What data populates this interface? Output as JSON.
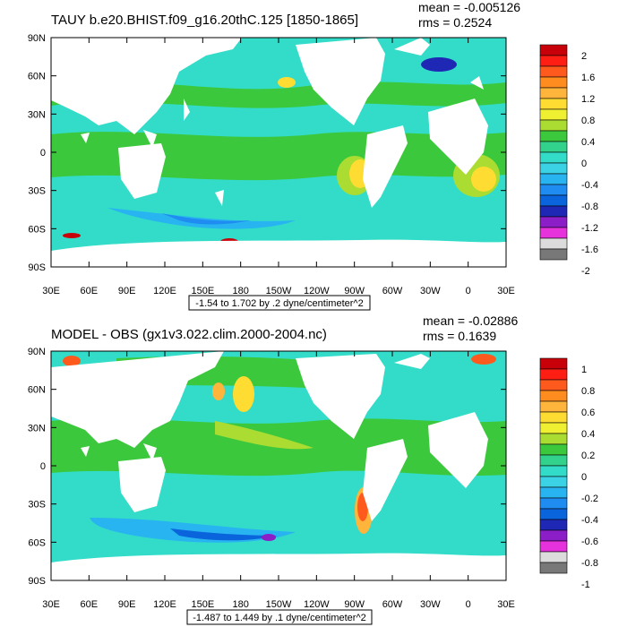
{
  "panels": [
    {
      "title": "TAUY b.e20.BHIST.f09_g16.20thC.125 [1850-1865]",
      "mean_label": "mean = -0.005126",
      "rms_label": "rms = 0.2524",
      "caption": "-1.54 to 1.702 by .2 dyne/centimeter^2",
      "colorbar_labels": [
        "2",
        "1.6",
        "1.2",
        "0.8",
        "0.4",
        "0",
        "-0.4",
        "-0.8",
        "-1.2",
        "-1.6",
        "-2"
      ]
    },
    {
      "title": "MODEL - OBS (gx1v3.022.clim.2000-2004.nc)",
      "mean_label": "mean = -0.02886",
      "rms_label": "rms = 0.1639",
      "caption": "-1.487 to 1.449 by .1 dyne/centimeter^2",
      "colorbar_labels": [
        "1",
        "0.8",
        "0.6",
        "0.4",
        "0.2",
        "0",
        "-0.2",
        "-0.4",
        "-0.6",
        "-0.8",
        "-1"
      ]
    }
  ],
  "axis": {
    "lat_labels": [
      "90N",
      "60N",
      "30N",
      "0",
      "30S",
      "60S",
      "90S"
    ],
    "lon_labels": [
      "30E",
      "60E",
      "90E",
      "120E",
      "150E",
      "180",
      "150W",
      "120W",
      "90W",
      "60W",
      "30W",
      "0",
      "30E"
    ]
  },
  "colors": {
    "scale": [
      "#c8000a",
      "#ff1e14",
      "#ff5a1e",
      "#ff8c1e",
      "#ffb43c",
      "#ffdc32",
      "#f0f032",
      "#aadc32",
      "#3cc83c",
      "#32d28c",
      "#32dcc8",
      "#3cd2e6",
      "#28b4f0",
      "#1e8cf0",
      "#0a64dc",
      "#1e28b4",
      "#8c1ec8",
      "#e632dc",
      "#dcdcdc",
      "#787878"
    ],
    "land": "#ffffff"
  }
}
